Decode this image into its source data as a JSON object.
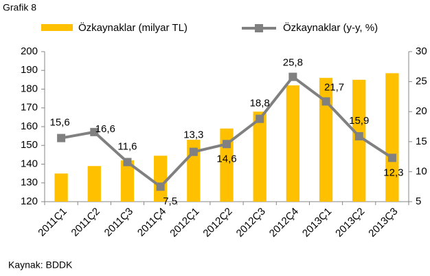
{
  "chart_data": {
    "type": "bar-line",
    "title": "Grafik 8",
    "source": "Kaynak: BDDK",
    "categories": [
      "2011Ç1",
      "2011Ç2",
      "2011Ç3",
      "2011Ç4",
      "2012Ç1",
      "2012Ç2",
      "2012Ç3",
      "2012Ç4",
      "2013Ç1",
      "2013Ç2",
      "2013Ç3"
    ],
    "series": [
      {
        "name": "Özkaynaklar (milyar TL)",
        "color": "#ffc000",
        "kind": "bar",
        "values": [
          135,
          139,
          142,
          144.5,
          153,
          159,
          168,
          182,
          186,
          185,
          188.5
        ]
      },
      {
        "name": "Özkaynaklar (y-y, %)",
        "color": "#808080",
        "kind": "line",
        "axis": "y2",
        "values": [
          15.6,
          16.6,
          11.6,
          7.5,
          13.3,
          14.6,
          18.8,
          25.8,
          21.7,
          15.9,
          12.3
        ],
        "value_labels": [
          "15,6",
          "16,6",
          "11,6",
          "7,5",
          "13,3",
          "14,6",
          "18,8",
          "25,8",
          "21,7",
          "15,9",
          "12,3"
        ]
      }
    ],
    "ylim": [
      120,
      200
    ],
    "yticks": [
      120,
      130,
      140,
      150,
      160,
      170,
      180,
      190,
      200
    ],
    "y2lim": [
      5,
      30
    ],
    "y2ticks": [
      5,
      10,
      15,
      20,
      25,
      30
    ]
  }
}
